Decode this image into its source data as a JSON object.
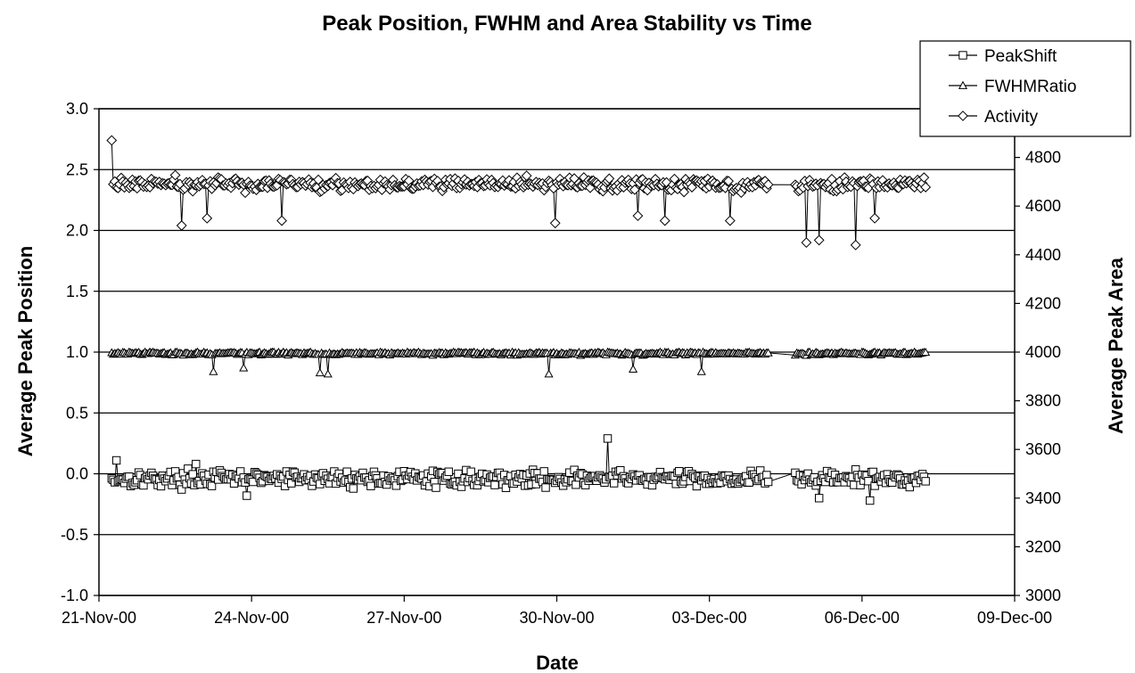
{
  "chart_data": {
    "type": "line",
    "title": "Peak Position, FWHM and Area Stability vs Time",
    "xlabel": "Date",
    "ylabel": "Average Peak Position",
    "y2label": "Average Peak Area",
    "xlim": [
      "2000-11-21",
      "2000-12-09"
    ],
    "x_ticks": [
      "21-Nov-00",
      "24-Nov-00",
      "27-Nov-00",
      "30-Nov-00",
      "03-Dec-00",
      "06-Dec-00",
      "09-Dec-00"
    ],
    "ylim": [
      -1.0,
      3.0
    ],
    "y_ticks": [
      "-1.0",
      "-0.5",
      "0.0",
      "0.5",
      "1.0",
      "1.5",
      "2.0",
      "2.5",
      "3.0"
    ],
    "y2lim": [
      3000,
      5000
    ],
    "y2_ticks": [
      "3000",
      "3200",
      "3400",
      "3600",
      "3800",
      "4000",
      "4200",
      "4400",
      "4600",
      "4800"
    ],
    "grid": "horizontal",
    "legend_position": "top-right",
    "x_start": "2000-11-21 06:00",
    "x_end": "2000-12-07 06:00",
    "series": [
      {
        "name": "PeakShift",
        "axis": "left",
        "marker": "square",
        "typical": -0.04,
        "spread": 0.05,
        "events": [
          {
            "date": "2000-11-21 08:00",
            "value": 0.11
          },
          {
            "date": "2000-11-22 22:00",
            "value": 0.08
          },
          {
            "date": "2000-11-23 22:00",
            "value": -0.18
          },
          {
            "date": "2000-12-01 00:00",
            "value": 0.29
          },
          {
            "date": "2000-12-05 04:00",
            "value": -0.2
          },
          {
            "date": "2000-12-06 04:00",
            "value": -0.22
          }
        ]
      },
      {
        "name": "FWHMRatio",
        "axis": "left",
        "marker": "triangle",
        "typical": 0.99,
        "spread": 0.01,
        "events": [
          {
            "date": "2000-11-23 06:00",
            "value": 0.84
          },
          {
            "date": "2000-11-23 20:00",
            "value": 0.87
          },
          {
            "date": "2000-11-25 08:00",
            "value": 0.83
          },
          {
            "date": "2000-11-25 12:00",
            "value": 0.82
          },
          {
            "date": "2000-11-29 20:00",
            "value": 0.82
          },
          {
            "date": "2000-12-01 12:00",
            "value": 0.86
          },
          {
            "date": "2000-12-02 20:00",
            "value": 0.84
          }
        ]
      },
      {
        "name": "Activity",
        "axis": "right",
        "marker": "diamond",
        "typical": 4690,
        "spread": 20,
        "events": [
          {
            "date": "2000-11-21 06:00",
            "value": 4870
          },
          {
            "date": "2000-11-22 15:00",
            "value": 4520
          },
          {
            "date": "2000-11-23 03:00",
            "value": 4550
          },
          {
            "date": "2000-11-24 14:00",
            "value": 4540
          },
          {
            "date": "2000-11-29 23:00",
            "value": 4530
          },
          {
            "date": "2000-12-01 14:00",
            "value": 4560
          },
          {
            "date": "2000-12-02 03:00",
            "value": 4540
          },
          {
            "date": "2000-12-03 10:00",
            "value": 4540
          },
          {
            "date": "2000-12-04 22:00",
            "value": 4450
          },
          {
            "date": "2000-12-05 04:00",
            "value": 4460
          },
          {
            "date": "2000-12-05 21:00",
            "value": 4440
          },
          {
            "date": "2000-12-06 06:00",
            "value": 4550
          }
        ]
      }
    ]
  }
}
